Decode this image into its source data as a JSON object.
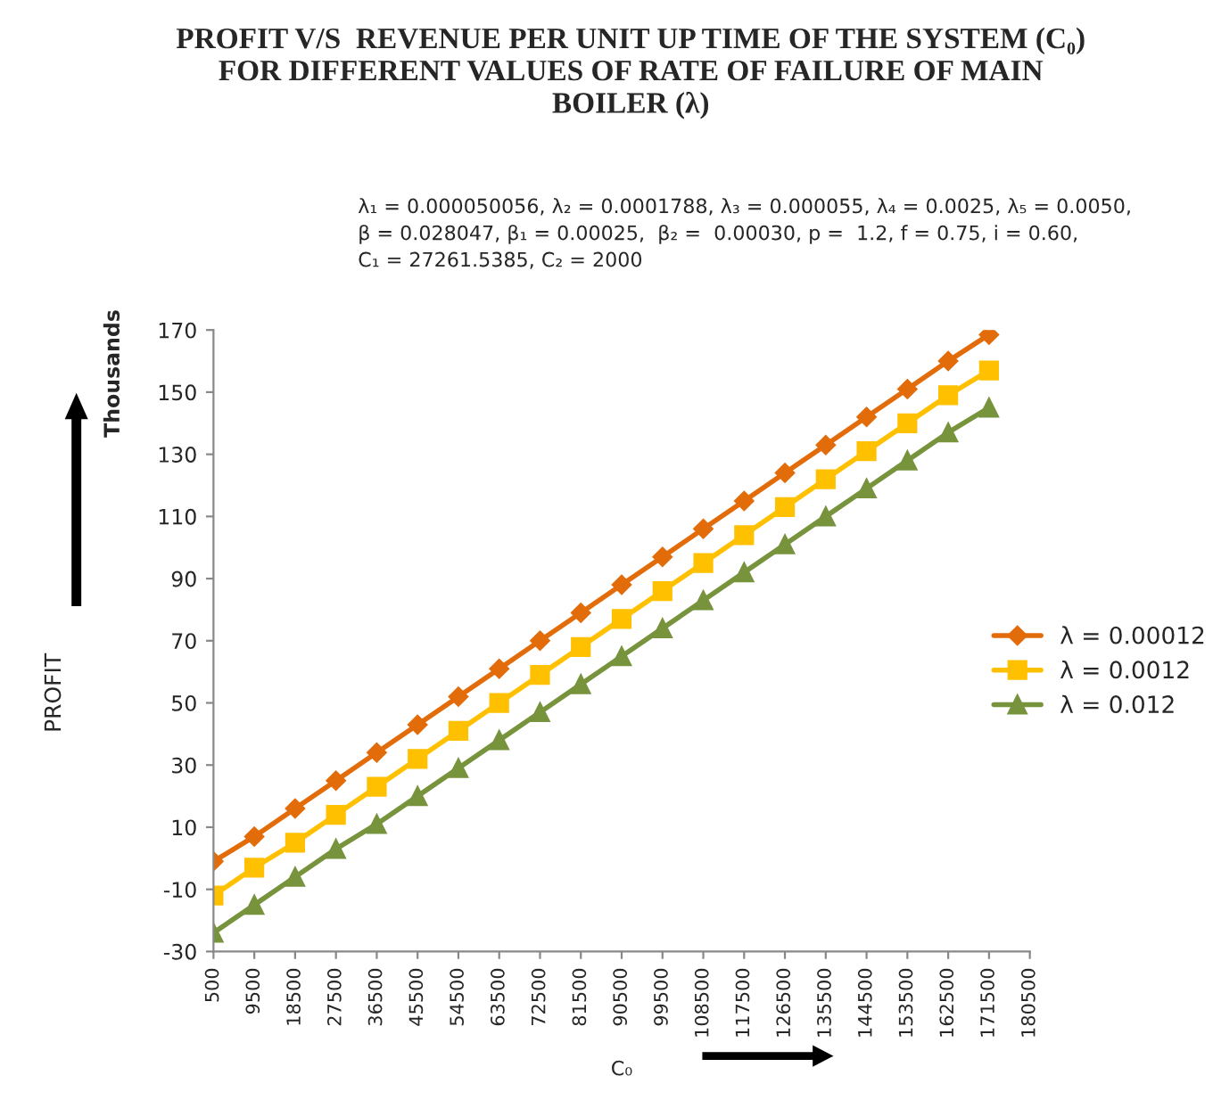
{
  "chart_data": {
    "type": "line",
    "title": "PROFIT V/S  REVENUE PER UNIT UP TIME OF THE SYSTEM (C₀)\nFOR DIFFERENT VALUES OF RATE OF FAILURE OF MAIN\nBOILER (λ)",
    "subtitle": "λ₁ = 0.000050056, λ₂ = 0.0001788, λ₃ = 0.000055, λ₄ = 0.0025, λ₅ = 0.0050,\nβ = 0.028047, β₁ = 0.00025,  β₂ =  0.00030, p =  1.2, f = 0.75, i = 0.60,\nC₁ = 27261.5385, C₂ = 2000",
    "xlabel": "C₀",
    "ylabel": "Thousands",
    "annotations": [
      "PROFIT"
    ],
    "categories": [
      "500",
      "9500",
      "18500",
      "27500",
      "36500",
      "45500",
      "54500",
      "63500",
      "72500",
      "81500",
      "90500",
      "99500",
      "108500",
      "117500",
      "126500",
      "135500",
      "144500",
      "153500",
      "162500",
      "171500",
      "180500"
    ],
    "series": [
      {
        "name": "λ = 0.00012",
        "color": "#e36c0a",
        "marker": "diamond",
        "values": [
          -1,
          7,
          16,
          25,
          34,
          43,
          52,
          61,
          70,
          79,
          88,
          97,
          106,
          115,
          124,
          133,
          142,
          151,
          160,
          168.5,
          null
        ]
      },
      {
        "name": "λ = 0.0012",
        "color": "#ffc000",
        "marker": "square",
        "values": [
          -12,
          -3,
          5,
          14,
          23,
          32,
          41,
          50,
          59,
          68,
          77,
          86,
          95,
          104,
          113,
          122,
          131,
          140,
          149,
          157,
          null
        ]
      },
      {
        "name": "λ = 0.012",
        "color": "#77933c",
        "marker": "triangle",
        "values": [
          -24,
          -15,
          -6,
          3,
          11,
          20,
          29,
          38,
          47,
          56,
          65,
          74,
          83,
          92,
          101,
          110,
          119,
          128,
          137,
          145,
          null
        ]
      }
    ],
    "ylim": [
      -30,
      170
    ],
    "yticks": [
      -30,
      -10,
      10,
      30,
      50,
      70,
      90,
      110,
      130,
      150,
      170
    ],
    "grid": false,
    "legend": "right",
    "line_style": "solid"
  }
}
